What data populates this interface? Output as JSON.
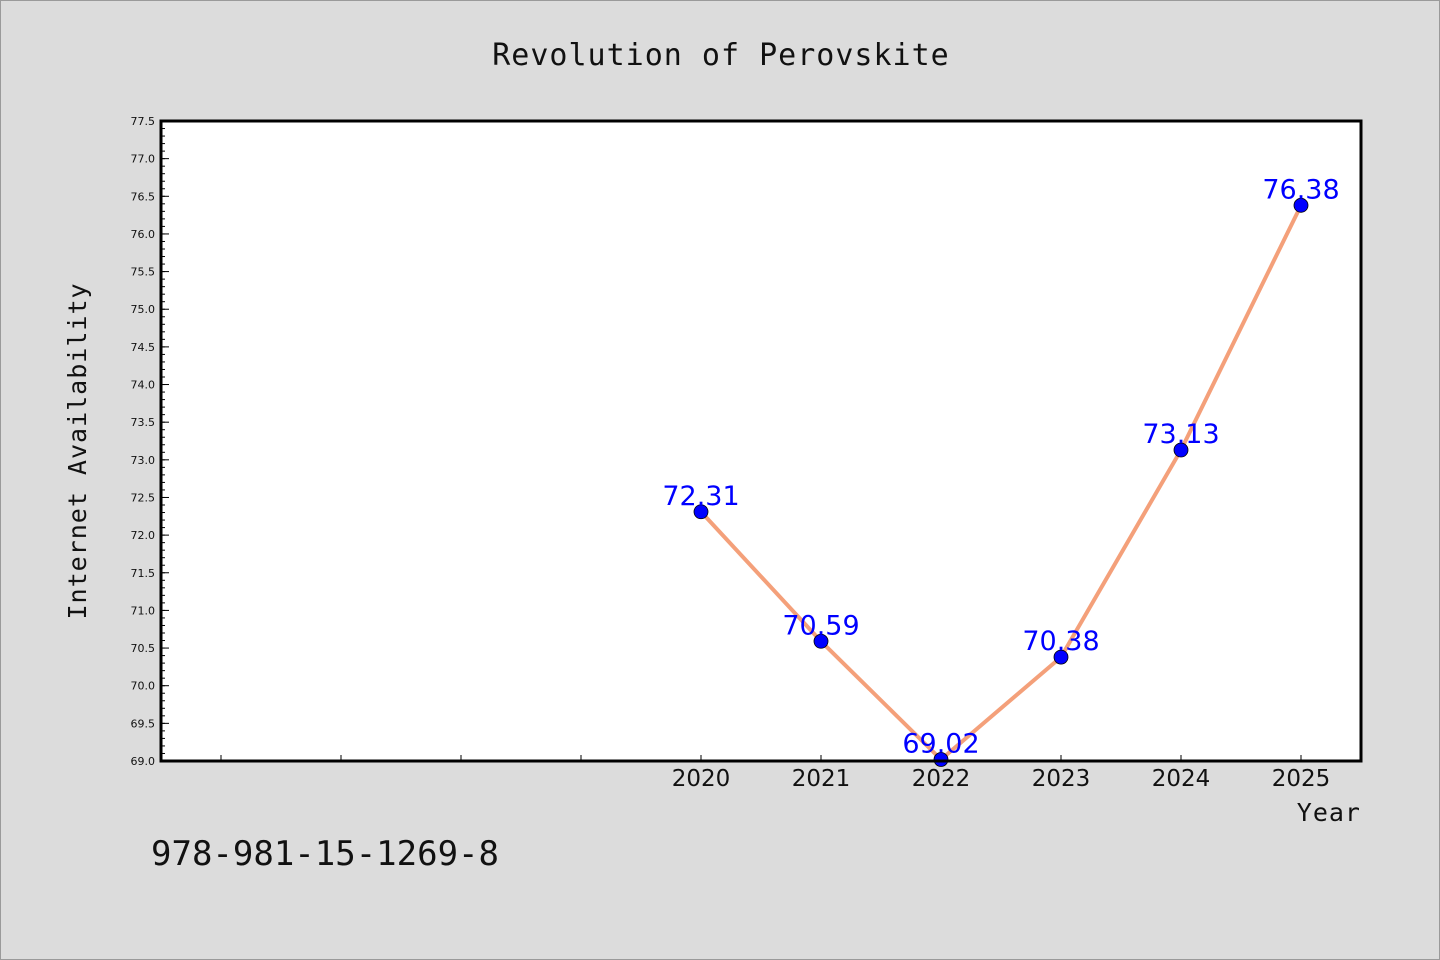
{
  "chart_data": {
    "type": "line",
    "title": "Revolution of Perovskite",
    "xlabel": "Year",
    "ylabel": "Internet Availability",
    "x": [
      "2020",
      "2021",
      "2022",
      "2023",
      "2024",
      "2025"
    ],
    "series": [
      {
        "values": [
          72.31,
          70.59,
          69.02,
          70.38,
          73.13,
          76.38
        ],
        "labels": [
          "72.31",
          "70.59",
          "69.02",
          "70.38",
          "73.13",
          "76.38"
        ]
      }
    ],
    "ylim": [
      69.0,
      77.5
    ],
    "yticks": [
      "69.0",
      "69.5",
      "70.0",
      "70.5",
      "71.0",
      "71.5",
      "72.0",
      "72.5",
      "73.0",
      "73.5",
      "74.0",
      "74.5",
      "75.0",
      "75.5",
      "76.0",
      "76.5",
      "77.0",
      "77.5"
    ],
    "grid": false,
    "line_color": "#f4a07a",
    "marker_color": "#0000ff",
    "label_color": "#0000ff"
  },
  "footnote": "978-981-15-1269-8"
}
